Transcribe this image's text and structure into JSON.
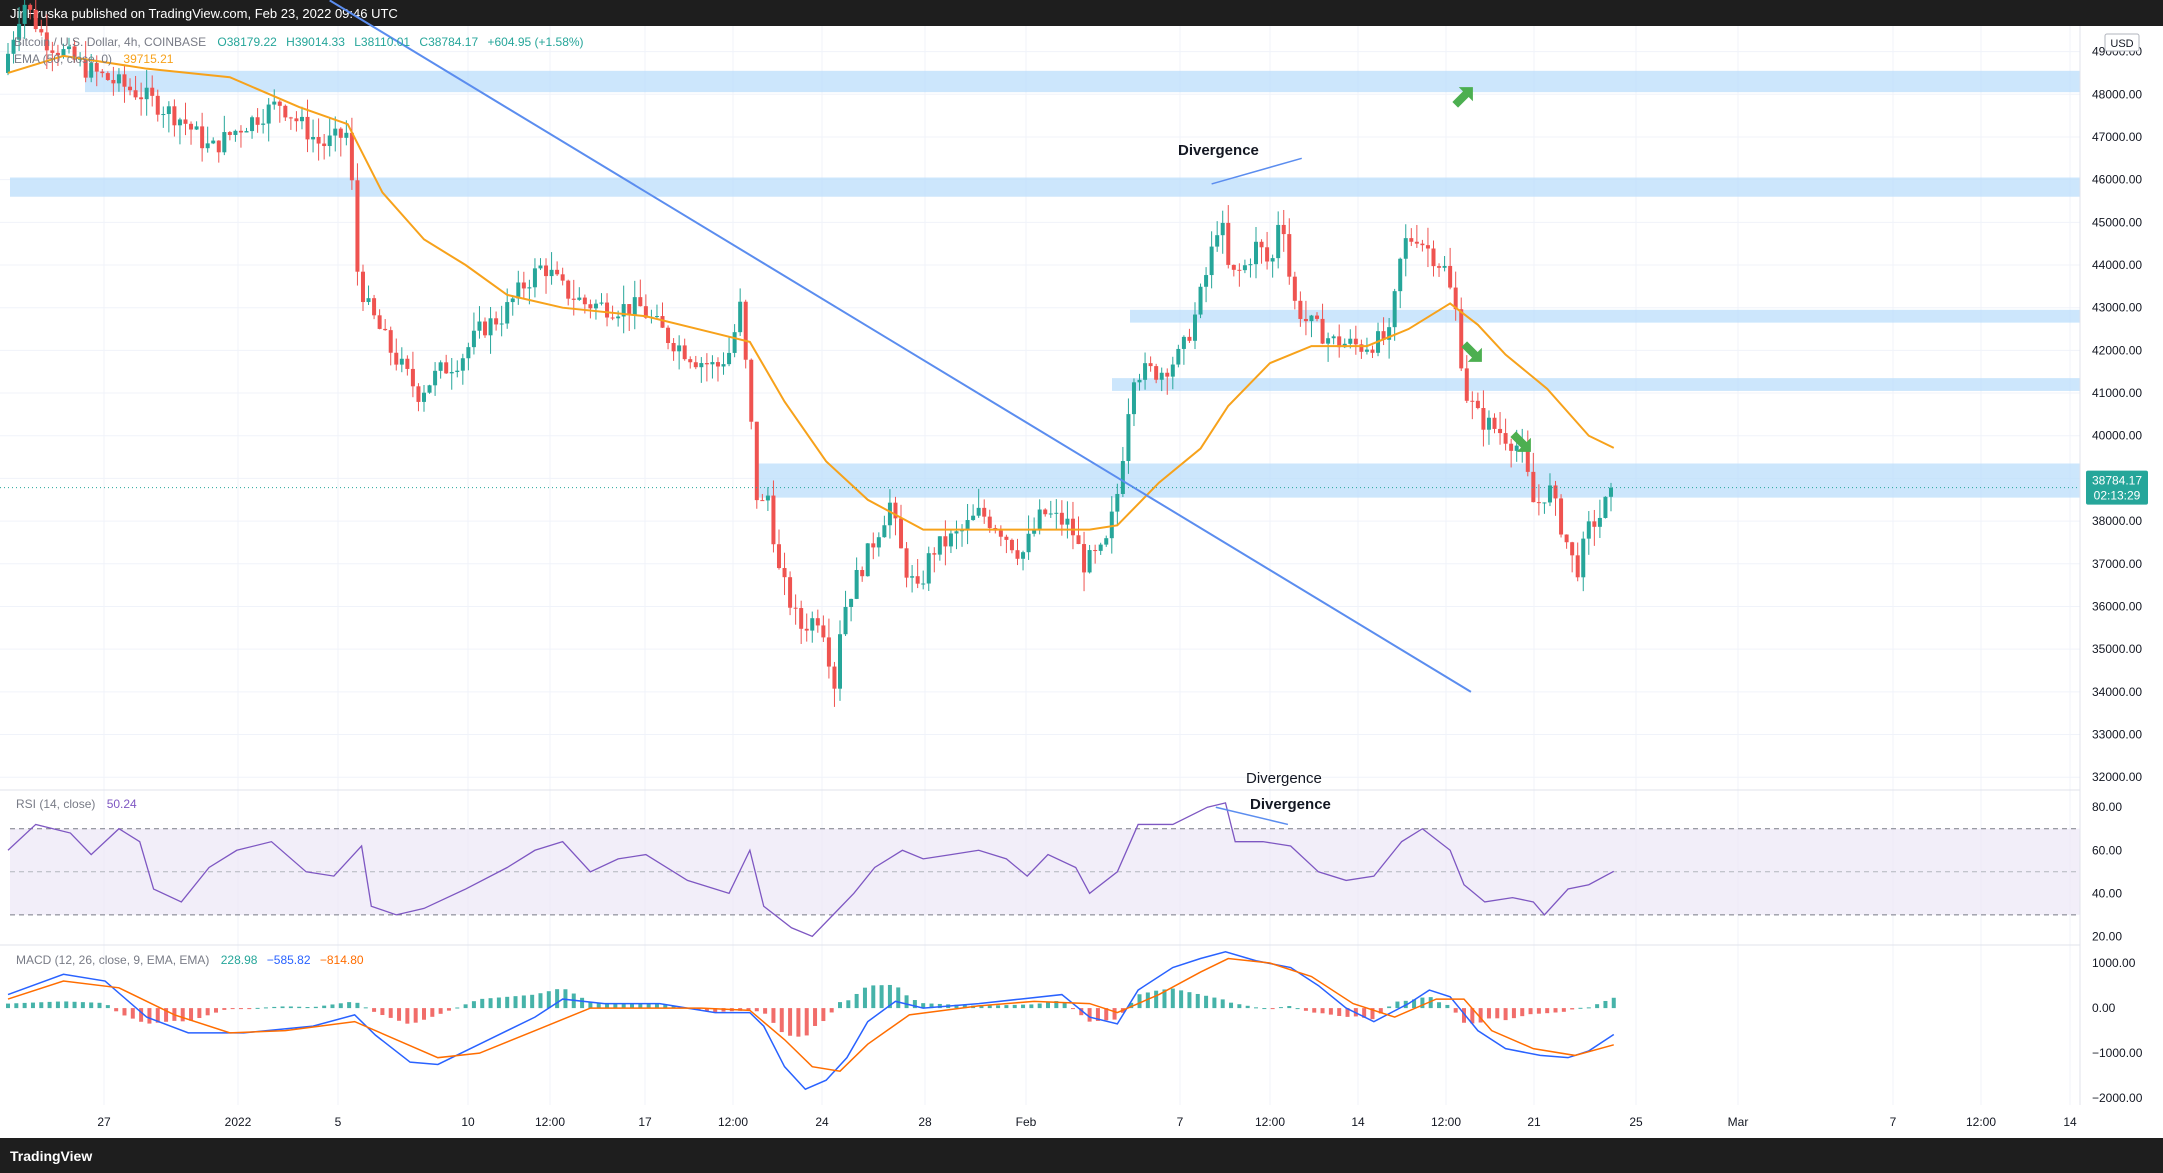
{
  "header": {
    "published": "JiriHruska published on TradingView.com, Feb 23, 2022 09:46 UTC"
  },
  "footer": {
    "logo": "TradingView"
  },
  "price_legend": {
    "symbol": "Bitcoin / U.S. Dollar, 4h, COINBASE",
    "o": "O38179.22",
    "h": "H39014.33",
    "l": "L38110.01",
    "c": "C38784.17",
    "chg": "+604.95 (+1.58%)",
    "ema": "EMA (50, close, 0)",
    "ema_val": "39715.21"
  },
  "rsi_legend": {
    "label": "RSI (14, close)",
    "val": "50.24"
  },
  "macd_legend": {
    "label": "MACD (12, 26, close, 9, EMA, EMA)",
    "v1": "228.98",
    "v2": "−585.82",
    "v3": "−814.80"
  },
  "currency": "USD",
  "last_price": {
    "price": "38784.17",
    "timer": "02:13:29"
  },
  "annotations": {
    "price_div": "Divergence",
    "rsi_div1": "Divergence",
    "rsi_div2": "Divergence"
  },
  "colors": {
    "bull": "#26a69a",
    "bear": "#ef5350",
    "ema": "#f7a21b",
    "trend": "#5b8def",
    "zone": "#bbdefb",
    "rsi": "#7e57c2",
    "macd": "#2962ff",
    "signal": "#ff6d00",
    "arrow": "#4caf50"
  },
  "chart_data": {
    "type": "candlestick",
    "title": "",
    "x_ticks": [
      "27",
      "2022",
      "5",
      "10",
      "12:00",
      "17",
      "12:00",
      "24",
      "28",
      "Feb",
      "7",
      "12:00",
      "14",
      "12:00",
      "21",
      "25",
      "Mar",
      "7",
      "12:00",
      "14"
    ],
    "y_ticks": [
      "49000.00",
      "48000.00",
      "47000.00",
      "46000.00",
      "45000.00",
      "44000.00",
      "43000.00",
      "42000.00",
      "41000.00",
      "40000.00",
      "39000.00",
      "38000.00",
      "37000.00",
      "36000.00",
      "35000.00",
      "34000.00",
      "33000.00",
      "32000.00"
    ],
    "ylim": [
      31700,
      49600
    ],
    "price_path": [
      [
        0,
        48500
      ],
      [
        15,
        50200
      ],
      [
        30,
        49300
      ],
      [
        60,
        48600
      ],
      [
        100,
        48000
      ],
      [
        130,
        47400
      ],
      [
        150,
        46700
      ],
      [
        170,
        47200
      ],
      [
        200,
        47800
      ],
      [
        230,
        46800
      ],
      [
        250,
        47100
      ],
      [
        255,
        44000
      ],
      [
        262,
        43100
      ],
      [
        280,
        42000
      ],
      [
        300,
        41000
      ],
      [
        315,
        41500
      ],
      [
        330,
        41800
      ],
      [
        345,
        42500
      ],
      [
        360,
        42800
      ],
      [
        375,
        43500
      ],
      [
        390,
        44000
      ],
      [
        405,
        43400
      ],
      [
        420,
        43100
      ],
      [
        440,
        43000
      ],
      [
        460,
        43000
      ],
      [
        480,
        42300
      ],
      [
        500,
        41800
      ],
      [
        515,
        41600
      ],
      [
        525,
        42000
      ],
      [
        532,
        43000
      ],
      [
        538,
        41000
      ],
      [
        545,
        38200
      ],
      [
        552,
        38600
      ],
      [
        560,
        36800
      ],
      [
        575,
        35500
      ],
      [
        590,
        35800
      ],
      [
        600,
        34200
      ],
      [
        605,
        35800
      ],
      [
        615,
        36600
      ],
      [
        625,
        37300
      ],
      [
        640,
        38400
      ],
      [
        650,
        37000
      ],
      [
        660,
        36300
      ],
      [
        670,
        37300
      ],
      [
        690,
        37700
      ],
      [
        705,
        38200
      ],
      [
        720,
        37800
      ],
      [
        735,
        37200
      ],
      [
        750,
        38200
      ],
      [
        770,
        37900
      ],
      [
        780,
        37000
      ],
      [
        795,
        37300
      ],
      [
        805,
        38800
      ],
      [
        815,
        41500
      ],
      [
        835,
        41500
      ],
      [
        850,
        41900
      ],
      [
        860,
        42800
      ],
      [
        870,
        44000
      ],
      [
        878,
        45200
      ],
      [
        885,
        43700
      ],
      [
        895,
        43900
      ],
      [
        905,
        44500
      ],
      [
        915,
        43900
      ],
      [
        922,
        45500
      ],
      [
        930,
        43200
      ],
      [
        940,
        42700
      ],
      [
        960,
        42200
      ],
      [
        980,
        42100
      ],
      [
        1000,
        42300
      ],
      [
        1010,
        44500
      ],
      [
        1020,
        44700
      ],
      [
        1030,
        44300
      ],
      [
        1040,
        43900
      ],
      [
        1048,
        42900
      ],
      [
        1055,
        41000
      ],
      [
        1065,
        40400
      ],
      [
        1080,
        40100
      ],
      [
        1095,
        39700
      ],
      [
        1105,
        38300
      ],
      [
        1115,
        38800
      ],
      [
        1125,
        37800
      ],
      [
        1135,
        36800
      ],
      [
        1145,
        37900
      ],
      [
        1155,
        38200
      ],
      [
        1158,
        38784
      ]
    ],
    "ema_path": [
      [
        0,
        48500
      ],
      [
        40,
        48900
      ],
      [
        100,
        48600
      ],
      [
        160,
        48400
      ],
      [
        210,
        47700
      ],
      [
        245,
        47300
      ],
      [
        270,
        45700
      ],
      [
        300,
        44600
      ],
      [
        330,
        44000
      ],
      [
        360,
        43300
      ],
      [
        400,
        43000
      ],
      [
        460,
        42800
      ],
      [
        510,
        42400
      ],
      [
        535,
        42200
      ],
      [
        560,
        40800
      ],
      [
        590,
        39400
      ],
      [
        620,
        38500
      ],
      [
        660,
        37800
      ],
      [
        700,
        37800
      ],
      [
        740,
        37800
      ],
      [
        780,
        37800
      ],
      [
        800,
        37900
      ],
      [
        830,
        38900
      ],
      [
        860,
        39700
      ],
      [
        880,
        40700
      ],
      [
        910,
        41700
      ],
      [
        940,
        42100
      ],
      [
        980,
        42100
      ],
      [
        1010,
        42500
      ],
      [
        1040,
        43100
      ],
      [
        1060,
        42600
      ],
      [
        1080,
        41900
      ],
      [
        1110,
        41100
      ],
      [
        1140,
        40000
      ],
      [
        1158,
        39715
      ]
    ],
    "zones": [
      [
        48050,
        48550
      ],
      [
        45600,
        46050
      ],
      [
        42650,
        42950
      ],
      [
        41050,
        41350
      ],
      [
        38550,
        39350
      ]
    ],
    "trendline": [
      [
        232,
        50200
      ],
      [
        1055,
        34000
      ]
    ],
    "price_divergence": [
      [
        868,
        45900
      ],
      [
        933,
        46500
      ]
    ],
    "rsi": {
      "ylim": [
        16,
        88
      ],
      "y_ticks": [
        "80.00",
        "60.00",
        "40.00",
        "20.00"
      ],
      "band": [
        30,
        70
      ],
      "path": [
        [
          0,
          60
        ],
        [
          20,
          72
        ],
        [
          45,
          68
        ],
        [
          60,
          58
        ],
        [
          80,
          70
        ],
        [
          95,
          64
        ],
        [
          105,
          42
        ],
        [
          125,
          36
        ],
        [
          145,
          52
        ],
        [
          165,
          60
        ],
        [
          190,
          64
        ],
        [
          215,
          50
        ],
        [
          235,
          48
        ],
        [
          255,
          62
        ],
        [
          262,
          34
        ],
        [
          280,
          30
        ],
        [
          300,
          33
        ],
        [
          330,
          42
        ],
        [
          360,
          52
        ],
        [
          380,
          60
        ],
        [
          400,
          64
        ],
        [
          420,
          50
        ],
        [
          440,
          56
        ],
        [
          460,
          58
        ],
        [
          490,
          46
        ],
        [
          520,
          40
        ],
        [
          535,
          60
        ],
        [
          545,
          34
        ],
        [
          565,
          24
        ],
        [
          580,
          20
        ],
        [
          595,
          30
        ],
        [
          610,
          40
        ],
        [
          625,
          52
        ],
        [
          645,
          60
        ],
        [
          660,
          56
        ],
        [
          680,
          58
        ],
        [
          700,
          60
        ],
        [
          720,
          56
        ],
        [
          735,
          48
        ],
        [
          750,
          58
        ],
        [
          770,
          52
        ],
        [
          780,
          40
        ],
        [
          800,
          50
        ],
        [
          815,
          72
        ],
        [
          840,
          72
        ],
        [
          865,
          80
        ],
        [
          878,
          82
        ],
        [
          885,
          64
        ],
        [
          905,
          64
        ],
        [
          925,
          62
        ],
        [
          945,
          50
        ],
        [
          965,
          46
        ],
        [
          985,
          48
        ],
        [
          1005,
          64
        ],
        [
          1020,
          70
        ],
        [
          1040,
          60
        ],
        [
          1050,
          44
        ],
        [
          1065,
          36
        ],
        [
          1085,
          38
        ],
        [
          1100,
          36
        ],
        [
          1108,
          30
        ],
        [
          1125,
          42
        ],
        [
          1140,
          44
        ],
        [
          1158,
          50.24
        ]
      ],
      "divergence": [
        [
          871,
          80
        ],
        [
          923,
          72
        ]
      ]
    },
    "macd": {
      "ylim": [
        -2150,
        1400
      ],
      "y_ticks": [
        "1000.00",
        "0.00",
        "−1000.00",
        "−2000.00"
      ],
      "macd_path": [
        [
          0,
          300
        ],
        [
          40,
          750
        ],
        [
          70,
          600
        ],
        [
          100,
          -200
        ],
        [
          130,
          -550
        ],
        [
          170,
          -550
        ],
        [
          220,
          -400
        ],
        [
          250,
          -150
        ],
        [
          265,
          -600
        ],
        [
          290,
          -1200
        ],
        [
          310,
          -1250
        ],
        [
          340,
          -800
        ],
        [
          380,
          -200
        ],
        [
          400,
          200
        ],
        [
          430,
          100
        ],
        [
          470,
          100
        ],
        [
          510,
          -100
        ],
        [
          535,
          -100
        ],
        [
          545,
          -400
        ],
        [
          560,
          -1300
        ],
        [
          575,
          -1800
        ],
        [
          590,
          -1600
        ],
        [
          605,
          -1100
        ],
        [
          620,
          -300
        ],
        [
          640,
          150
        ],
        [
          660,
          0
        ],
        [
          700,
          100
        ],
        [
          730,
          200
        ],
        [
          760,
          300
        ],
        [
          780,
          -200
        ],
        [
          800,
          -350
        ],
        [
          815,
          400
        ],
        [
          840,
          900
        ],
        [
          860,
          1100
        ],
        [
          878,
          1250
        ],
        [
          900,
          1050
        ],
        [
          925,
          900
        ],
        [
          945,
          500
        ],
        [
          965,
          0
        ],
        [
          985,
          -300
        ],
        [
          1010,
          100
        ],
        [
          1025,
          400
        ],
        [
          1040,
          250
        ],
        [
          1060,
          -500
        ],
        [
          1080,
          -900
        ],
        [
          1105,
          -1050
        ],
        [
          1125,
          -1100
        ],
        [
          1140,
          -950
        ],
        [
          1158,
          -586
        ]
      ],
      "signal_path": [
        [
          0,
          200
        ],
        [
          40,
          600
        ],
        [
          80,
          450
        ],
        [
          120,
          -150
        ],
        [
          160,
          -550
        ],
        [
          200,
          -500
        ],
        [
          250,
          -300
        ],
        [
          280,
          -700
        ],
        [
          310,
          -1100
        ],
        [
          340,
          -1000
        ],
        [
          380,
          -500
        ],
        [
          420,
          0
        ],
        [
          460,
          0
        ],
        [
          500,
          0
        ],
        [
          535,
          -50
        ],
        [
          560,
          -700
        ],
        [
          580,
          -1300
        ],
        [
          600,
          -1400
        ],
        [
          620,
          -800
        ],
        [
          650,
          -150
        ],
        [
          700,
          50
        ],
        [
          740,
          150
        ],
        [
          780,
          100
        ],
        [
          800,
          -100
        ],
        [
          830,
          300
        ],
        [
          860,
          800
        ],
        [
          880,
          1100
        ],
        [
          910,
          1000
        ],
        [
          940,
          700
        ],
        [
          970,
          100
        ],
        [
          1000,
          -200
        ],
        [
          1030,
          200
        ],
        [
          1050,
          200
        ],
        [
          1070,
          -500
        ],
        [
          1100,
          -900
        ],
        [
          1130,
          -1050
        ],
        [
          1158,
          -815
        ]
      ]
    }
  }
}
